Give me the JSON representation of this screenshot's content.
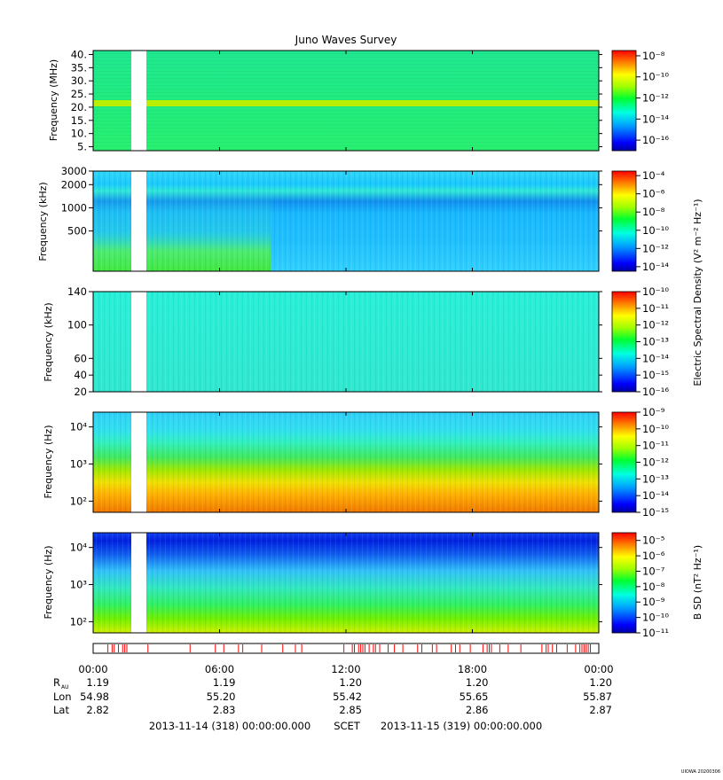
{
  "title": "Juno Waves Survey",
  "stamp": "UIOWA 20200306",
  "shared_ylabel": "Electric Spectral Density (V² m⁻² Hz⁻¹)",
  "chart_data": [
    {
      "type": "heatmap",
      "panel": 1,
      "ylabel": "Frequency (MHz)",
      "yscale": "linear",
      "ylim": [
        3.5,
        41.5
      ],
      "yticks": [
        {
          "value": 5,
          "label": "5."
        },
        {
          "value": 10,
          "label": "10."
        },
        {
          "value": 15,
          "label": "15."
        },
        {
          "value": 20,
          "label": "20."
        },
        {
          "value": 25,
          "label": "25."
        },
        {
          "value": 30,
          "label": "30."
        },
        {
          "value": 35,
          "label": "35."
        },
        {
          "value": 40,
          "label": "40."
        }
      ],
      "colorbar": {
        "min_exp": -17,
        "max_exp": -7.5,
        "tick_exps": [
          -16,
          -14,
          -12,
          -10,
          -8
        ],
        "label": ""
      },
      "data_gap_hours": [
        2.0,
        2.7
      ],
      "dominant_level_exp": -13.6
    },
    {
      "type": "heatmap",
      "panel": 2,
      "ylabel": "Frequency (kHz)",
      "yscale": "log",
      "ylim": [
        150,
        3000
      ],
      "yticks": [
        {
          "value": 500,
          "label": "500"
        },
        {
          "value": 1000,
          "label": "1000"
        },
        {
          "value": 2000,
          "label": "2000"
        },
        {
          "value": 3000,
          "label": "3000"
        }
      ],
      "colorbar": {
        "min_exp": -14.5,
        "max_exp": -3.5,
        "tick_exps": [
          -14,
          -12,
          -10,
          -8,
          -6,
          -4
        ],
        "label": ""
      },
      "data_gap_hours": [
        2.0,
        2.7
      ],
      "dominant_level_exp": -11
    },
    {
      "type": "heatmap",
      "panel": 3,
      "ylabel": "Frequency (kHz)",
      "yscale": "linear",
      "ylim": [
        20,
        140
      ],
      "yticks": [
        {
          "value": 20,
          "label": "20"
        },
        {
          "value": 40,
          "label": "40"
        },
        {
          "value": 60,
          "label": "60"
        },
        {
          "value": 100,
          "label": "100"
        },
        {
          "value": 140,
          "label": "140"
        }
      ],
      "colorbar": {
        "min_exp": -16,
        "max_exp": -10,
        "tick_exps": [
          -16,
          -15,
          -14,
          -13,
          -12,
          -11,
          -10
        ],
        "label": ""
      },
      "data_gap_hours": [
        2.0,
        2.7
      ],
      "dominant_level_exp": -14.3
    },
    {
      "type": "heatmap",
      "panel": 4,
      "ylabel": "Frequency (Hz)",
      "yscale": "log",
      "ylim": [
        50,
        25000
      ],
      "yticks": [
        {
          "value": 100,
          "label": "10²"
        },
        {
          "value": 1000,
          "label": "10³"
        },
        {
          "value": 10000,
          "label": "10⁴"
        }
      ],
      "colorbar": {
        "min_exp": -15,
        "max_exp": -9,
        "tick_exps": [
          -15,
          -14,
          -13,
          -12,
          -11,
          -10,
          -9
        ],
        "label": ""
      },
      "data_gap_hours": [
        2.0,
        2.7
      ]
    },
    {
      "type": "heatmap",
      "panel": 5,
      "ylabel": "Frequency (Hz)",
      "yscale": "log",
      "ylim": [
        50,
        25000
      ],
      "yticks": [
        {
          "value": 100,
          "label": "10²"
        },
        {
          "value": 1000,
          "label": "10³"
        },
        {
          "value": 10000,
          "label": "10⁴"
        }
      ],
      "colorbar": {
        "min_exp": -11,
        "max_exp": -4.5,
        "tick_exps": [
          -11,
          -10,
          -9,
          -8,
          -7,
          -6,
          -5
        ],
        "label": "B SD (nT² Hz⁻¹)"
      },
      "data_gap_hours": [
        2.0,
        2.7
      ]
    }
  ],
  "mode_bar": {
    "marker_color": "#ff0000",
    "marks_hours": [
      0.7,
      0.9,
      1.0,
      1.2,
      1.4,
      1.5,
      1.6,
      2.6,
      4.6,
      5.8,
      6.2,
      6.9,
      7.1,
      8.0,
      9.0,
      9.6,
      9.9,
      11.9,
      12.3,
      12.4,
      12.6,
      12.7,
      12.8,
      12.9,
      13.1,
      13.3,
      13.4,
      13.6,
      14.0,
      14.3,
      14.7,
      15.4,
      15.6,
      16.1,
      16.3,
      17.0,
      17.2,
      17.4,
      17.9,
      18.5,
      18.7,
      18.8,
      18.9,
      19.3,
      19.7,
      20.3,
      21.3,
      21.5,
      21.6,
      21.8,
      22.0,
      22.5,
      22.9,
      23.1,
      23.2,
      23.3,
      23.4,
      23.5,
      23.6
    ]
  },
  "x_axis": {
    "range_hours": [
      0,
      24
    ],
    "ticks": [
      {
        "hour": 0,
        "label": "00:00"
      },
      {
        "hour": 6,
        "label": "06:00"
      },
      {
        "hour": 12,
        "label": "12:00"
      },
      {
        "hour": 18,
        "label": "18:00"
      },
      {
        "hour": 24,
        "label": "00:00"
      }
    ]
  },
  "ephemeris": [
    {
      "label": "R",
      "sub": "AU",
      "values": [
        "1.19",
        "1.19",
        "1.20",
        "1.20",
        "1.20"
      ]
    },
    {
      "label": "Lon",
      "sub": "",
      "values": [
        "54.98",
        "55.20",
        "55.42",
        "55.65",
        "55.87"
      ]
    },
    {
      "label": "Lat",
      "sub": "",
      "values": [
        "2.82",
        "2.83",
        "2.85",
        "2.86",
        "2.87"
      ]
    }
  ],
  "time_span": {
    "start": "2013-11-14 (318) 00:00:00.000",
    "label": "SCET",
    "end": "2013-11-15 (319) 00:00:00.000"
  }
}
